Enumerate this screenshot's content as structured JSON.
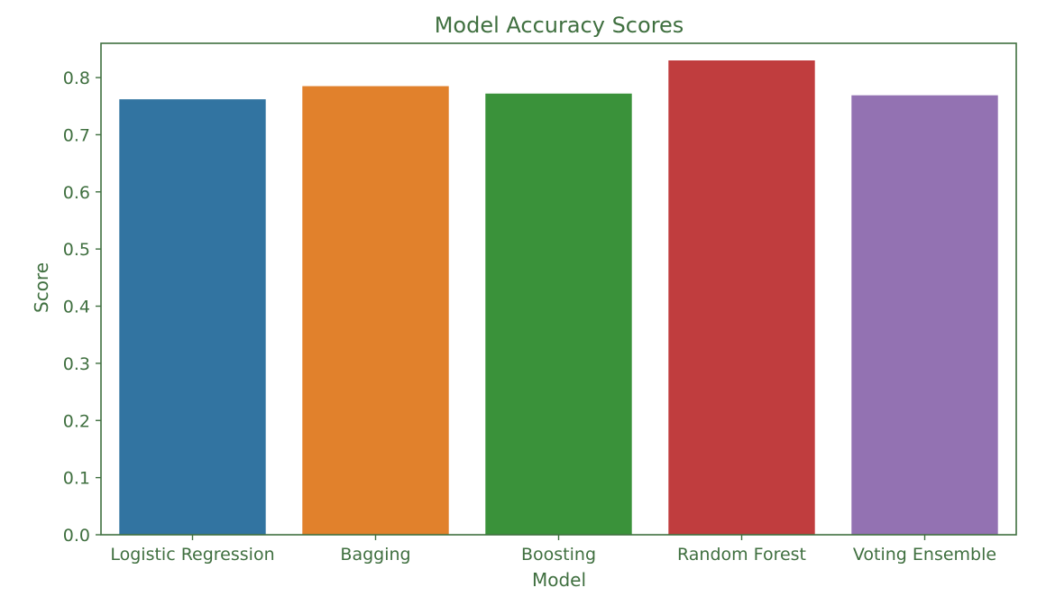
{
  "chart_data": {
    "type": "bar",
    "title": "Model Accuracy Scores",
    "xlabel": "Model",
    "ylabel": "Score",
    "categories": [
      "Logistic Regression",
      "Bagging",
      "Boosting",
      "Random Forest",
      "Voting Ensemble"
    ],
    "values": [
      0.762,
      0.785,
      0.772,
      0.83,
      0.769
    ],
    "colors": [
      "#3274a1",
      "#e1812c",
      "#3a923a",
      "#c03d3e",
      "#9372b2"
    ],
    "ylim": [
      0,
      0.86
    ],
    "yticks": [
      "0.0",
      "0.1",
      "0.2",
      "0.3",
      "0.4",
      "0.5",
      "0.6",
      "0.7",
      "0.8"
    ],
    "grid": false,
    "legend": "none"
  },
  "style": {
    "text_color": "#3f6f3f",
    "axis_color": "#3f6f3f"
  }
}
